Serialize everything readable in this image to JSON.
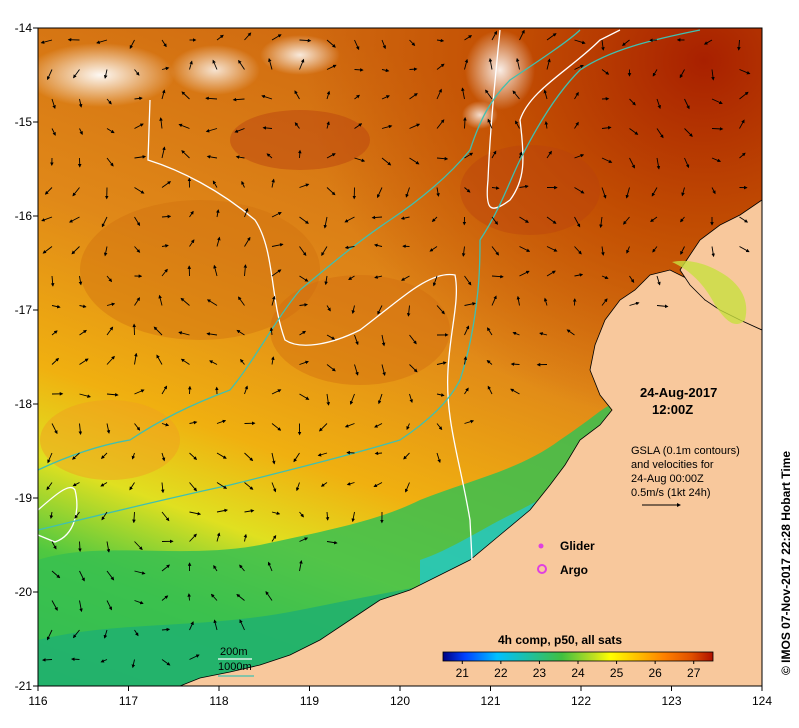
{
  "map": {
    "lon_ticks": [
      "116",
      "117",
      "118",
      "119",
      "120",
      "121",
      "122",
      "123",
      "124"
    ],
    "lat_ticks": [
      "-14",
      "-15",
      "-16",
      "-17",
      "-18",
      "-19",
      "-20",
      "-21"
    ],
    "lon_range": [
      116,
      124
    ],
    "lat_range": [
      -21,
      -14
    ]
  },
  "date_label": {
    "line1": "24-Aug-2017",
    "line2": "12:00Z"
  },
  "gsla_note": {
    "line1": "GSLA (0.1m contours)",
    "line2": "and velocities for",
    "line3": "24-Aug 00:00Z",
    "line4": "0.5m/s (1kt 24h)"
  },
  "legend": {
    "glider": "Glider",
    "argo": "Argo",
    "glider_color": "#e040e0",
    "argo_color": "#e040e0"
  },
  "depth_legend": {
    "d200": "200m",
    "d1000": "1000m",
    "color_1000": "#40c0b0"
  },
  "colorbar": {
    "title": "4h comp, p50, all sats",
    "ticks": [
      "21",
      "22",
      "23",
      "24",
      "25",
      "26",
      "27"
    ],
    "range": [
      20.5,
      27.5
    ],
    "colors": [
      "#000080",
      "#0040ff",
      "#00c0ff",
      "#20c0a0",
      "#40c040",
      "#c0e020",
      "#ffff00",
      "#ffc000",
      "#ff8000",
      "#e05000",
      "#b01000"
    ]
  },
  "credit": "© IMOS 07-Nov-2017 22:28 Hobart Time",
  "colors": {
    "land": "#f8c89c",
    "warm": "#e08010",
    "hot": "#b83000",
    "mid": "#f0a818",
    "cool": "#30c060",
    "cold": "#20c8d0"
  }
}
